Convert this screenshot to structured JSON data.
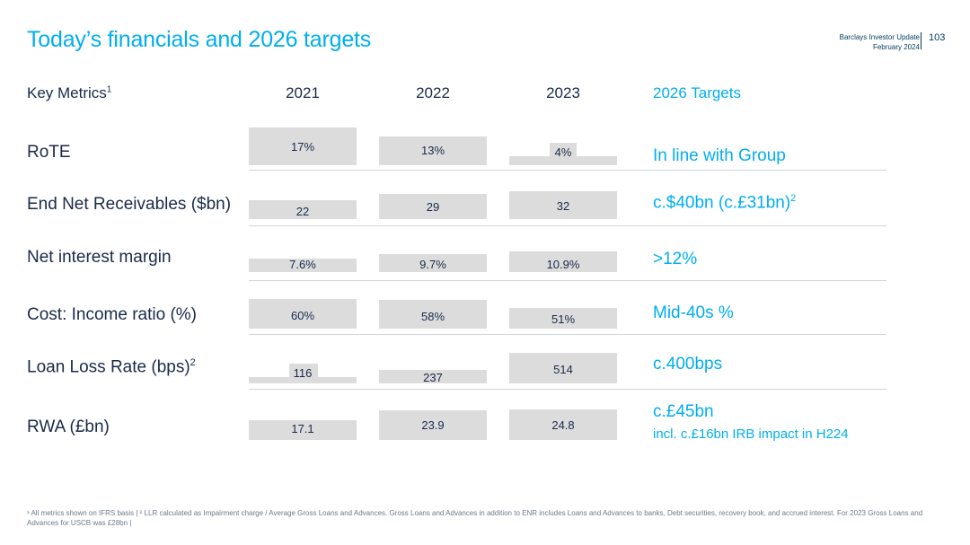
{
  "title": "Today’s financials and 2026 targets",
  "header_right": {
    "line1": "Barclays Investor Update",
    "line2": "February 2024",
    "page": "103"
  },
  "columns": {
    "metrics_label": "Key Metrics",
    "metrics_sup": "1",
    "years": [
      "2021",
      "2022",
      "2023"
    ],
    "targets_label": "2026 Targets"
  },
  "rows": [
    {
      "label": "RoTE",
      "sup": "",
      "values": [
        "17%",
        "13%",
        "4%"
      ],
      "target": "In line with Group",
      "target_sup": "",
      "target_sub": ""
    },
    {
      "label": "End Net Receivables ($bn)",
      "sup": "",
      "values": [
        "22",
        "29",
        "32"
      ],
      "target": "c.$40bn (c.£31bn)",
      "target_sup": "2",
      "target_sub": ""
    },
    {
      "label": "Net interest margin",
      "sup": "",
      "values": [
        "7.6%",
        "9.7%",
        "10.9%"
      ],
      "target": ">12%",
      "target_sup": "",
      "target_sub": ""
    },
    {
      "label": "Cost: Income ratio (%)",
      "sup": "",
      "values": [
        "60%",
        "58%",
        "51%"
      ],
      "target": "Mid-40s %",
      "target_sup": "",
      "target_sub": ""
    },
    {
      "label": "Loan Loss Rate (bps)",
      "sup": "2",
      "values": [
        "116",
        "237",
        "514"
      ],
      "target": "c.400bps",
      "target_sup": "",
      "target_sub": ""
    },
    {
      "label": "RWA (£bn)",
      "sup": "",
      "values": [
        "17.1",
        "23.9",
        "24.8"
      ],
      "target": "c.£45bn",
      "target_sup": "",
      "target_sub": "incl. c.£16bn IRB impact in H224"
    }
  ],
  "footnote": "¹ All metrics shown on IFRS basis | ² LLR calculated as Impairment charge / Average Gross Loans and Advances. Gross Loans and Advances in addition to ENR includes Loans and Advances to banks, Debt securities, recovery book, and accrued interest. For 2023 Gross Loans and Advances for USCB was £28bn |",
  "colors": {
    "accent": "#00aeef",
    "navy": "#1a2a4a",
    "bar": "#dcdcdc"
  }
}
